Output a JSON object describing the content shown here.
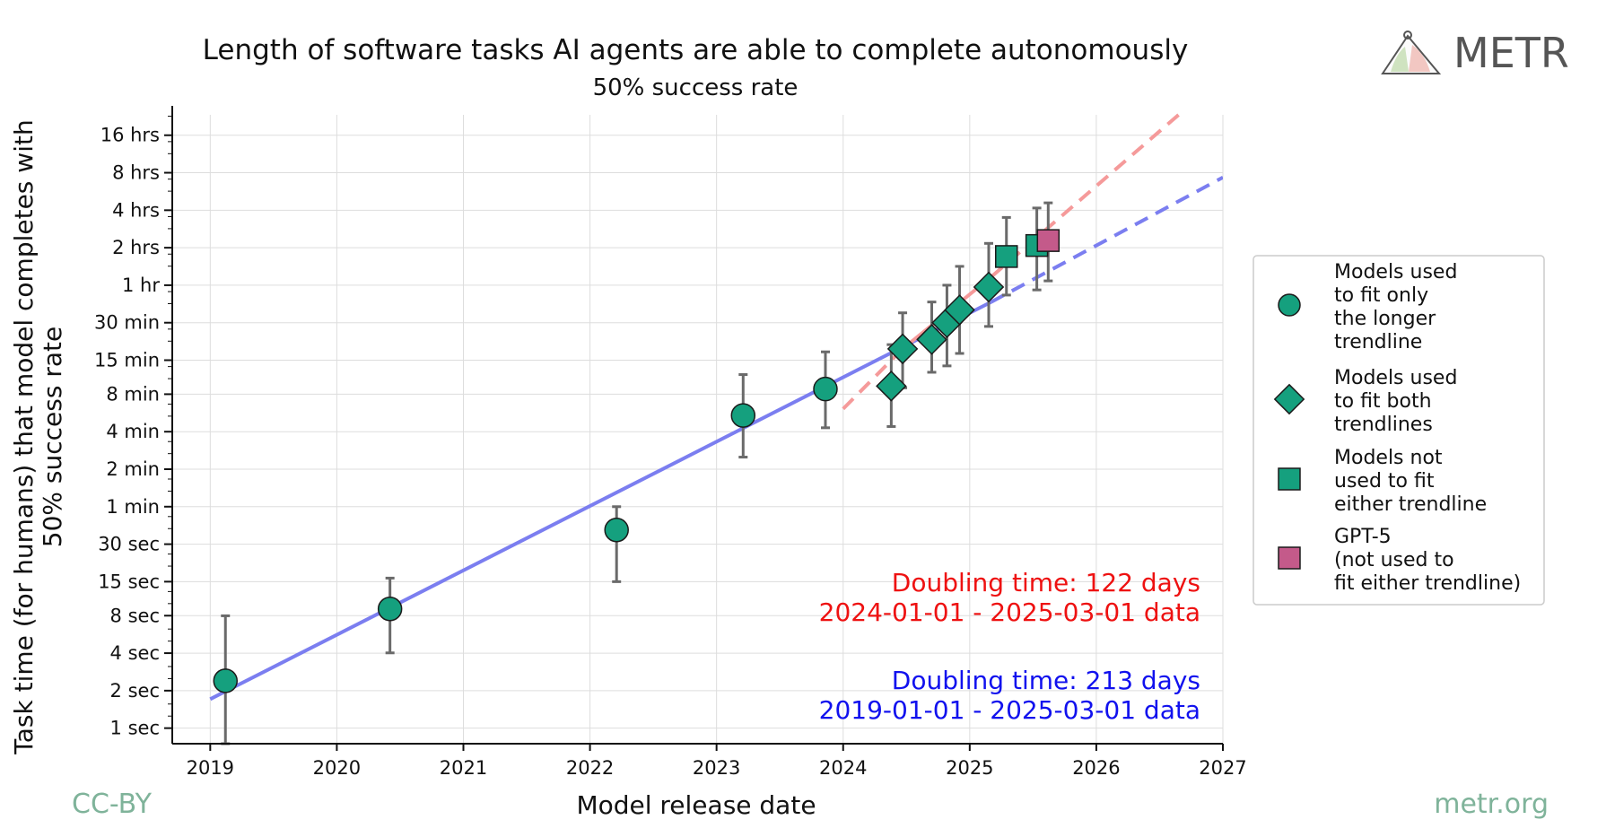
{
  "branding": {
    "logo_text": "METR",
    "license": "CC-BY",
    "site": "metr.org",
    "footer_color": "#7fb39a"
  },
  "chart_data": {
    "type": "scatter",
    "title": "Length of software tasks AI agents are able to complete autonomously",
    "subtitle": "50% success rate",
    "xlabel": "Model release date",
    "ylabel": "Task time (for humans) that model completes with 50% success rate",
    "y_scale": "log2 (minutes)",
    "xlim": [
      2018.7,
      2027.0
    ],
    "ylim_minutes": [
      0.0125,
      1400
    ],
    "x_ticks": [
      {
        "value": 2019,
        "label": "2019"
      },
      {
        "value": 2020,
        "label": "2020"
      },
      {
        "value": 2021,
        "label": "2021"
      },
      {
        "value": 2022,
        "label": "2022"
      },
      {
        "value": 2023,
        "label": "2023"
      },
      {
        "value": 2024,
        "label": "2024"
      },
      {
        "value": 2025,
        "label": "2025"
      },
      {
        "value": 2026,
        "label": "2026"
      },
      {
        "value": 2027,
        "label": "2027"
      }
    ],
    "y_ticks": [
      {
        "minutes": 0.016667,
        "label": "1 sec"
      },
      {
        "minutes": 0.033333,
        "label": "2 sec"
      },
      {
        "minutes": 0.066667,
        "label": "4 sec"
      },
      {
        "minutes": 0.133333,
        "label": "8 sec"
      },
      {
        "minutes": 0.25,
        "label": "15 sec"
      },
      {
        "minutes": 0.5,
        "label": "30 sec"
      },
      {
        "minutes": 1,
        "label": "1 min"
      },
      {
        "minutes": 2,
        "label": "2 min"
      },
      {
        "minutes": 4,
        "label": "4 min"
      },
      {
        "minutes": 8,
        "label": "8 min"
      },
      {
        "minutes": 15,
        "label": "15 min"
      },
      {
        "minutes": 30,
        "label": "30 min"
      },
      {
        "minutes": 60,
        "label": "1 hr"
      },
      {
        "minutes": 120,
        "label": "2 hrs"
      },
      {
        "minutes": 240,
        "label": "4 hrs"
      },
      {
        "minutes": 480,
        "label": "8 hrs"
      },
      {
        "minutes": 960,
        "label": "16 hrs"
      }
    ],
    "colors": {
      "marker": "#15a07e",
      "gpt5": "#c45a8a",
      "long_trend": "#7b7ef0",
      "short_trend": "#f59a9a",
      "errorbar": "#6a6a6a",
      "short_text": "#ee1111",
      "long_text": "#1111ee"
    },
    "series": [
      {
        "name": "Models used to fit only the longer trendline",
        "marker": "circle",
        "points": [
          {
            "x": 2019.12,
            "y": 0.04,
            "lo": 0.0125,
            "hi": 0.133
          },
          {
            "x": 2020.42,
            "y": 0.151,
            "lo": 0.067,
            "hi": 0.267
          },
          {
            "x": 2022.21,
            "y": 0.65,
            "lo": 0.25,
            "hi": 1.0
          },
          {
            "x": 2023.21,
            "y": 5.4,
            "lo": 2.5,
            "hi": 11.5
          },
          {
            "x": 2023.86,
            "y": 8.8,
            "lo": 4.3,
            "hi": 17.5
          }
        ]
      },
      {
        "name": "Models used to fit both trendlines",
        "marker": "diamond",
        "points": [
          {
            "x": 2024.38,
            "y": 9.3,
            "lo": 4.4,
            "hi": 20
          },
          {
            "x": 2024.47,
            "y": 18.5,
            "lo": 9,
            "hi": 36
          },
          {
            "x": 2024.7,
            "y": 22,
            "lo": 12,
            "hi": 44
          },
          {
            "x": 2024.82,
            "y": 30,
            "lo": 13.5,
            "hi": 60
          },
          {
            "x": 2024.92,
            "y": 38,
            "lo": 17,
            "hi": 85
          },
          {
            "x": 2025.15,
            "y": 58,
            "lo": 28,
            "hi": 130
          }
        ]
      },
      {
        "name": "Models not used to fit either trendline",
        "marker": "square",
        "points": [
          {
            "x": 2025.29,
            "y": 102,
            "lo": 50,
            "hi": 210
          },
          {
            "x": 2025.53,
            "y": 125,
            "lo": 55,
            "hi": 250
          }
        ]
      },
      {
        "name": "GPT-5 (not used to fit either trendline)",
        "marker": "square",
        "points": [
          {
            "x": 2025.62,
            "y": 137,
            "lo": 65,
            "hi": 275
          }
        ]
      }
    ],
    "trendlines": [
      {
        "name": "long",
        "doubling_days": 213,
        "range": "2019-01-01 - 2025-03-01 data",
        "solid_x": [
          2019.0,
          2025.17
        ],
        "solid_y": [
          0.0285,
          44
        ],
        "dashed_x": [
          2025.17,
          2027.0
        ],
        "dashed_y": [
          44,
          440
        ]
      },
      {
        "name": "short",
        "doubling_days": 122,
        "range": "2024-01-01 - 2025-03-01 data",
        "solid_x": [
          2024.47,
          2025.17
        ],
        "solid_y": [
          18.5,
          70
        ],
        "dashed_x": [
          [
            2024.0,
            2024.47
          ],
          [
            2025.17,
            2026.65
          ]
        ],
        "dashed_y": [
          [
            6.1,
            18.5
          ],
          [
            70,
            1400
          ]
        ]
      }
    ],
    "annotations": {
      "short_line1": "Doubling time: 122 days",
      "short_line2": "2024-01-01 - 2025-03-01 data",
      "long_line1": "Doubling time: 213 days",
      "long_line2": "2019-01-01 - 2025-03-01 data"
    },
    "legend": {
      "position": "right",
      "entries": [
        {
          "marker": "circle",
          "lines": [
            "Models used",
            "to fit only",
            "the longer",
            "trendline"
          ]
        },
        {
          "marker": "diamond",
          "lines": [
            "Models used",
            "to fit both",
            "trendlines"
          ]
        },
        {
          "marker": "square",
          "lines": [
            "Models not",
            "used to fit",
            "either trendline"
          ]
        },
        {
          "marker": "square-gpt5",
          "lines": [
            "GPT-5",
            "(not used to",
            "fit either trendline)"
          ]
        }
      ]
    }
  }
}
